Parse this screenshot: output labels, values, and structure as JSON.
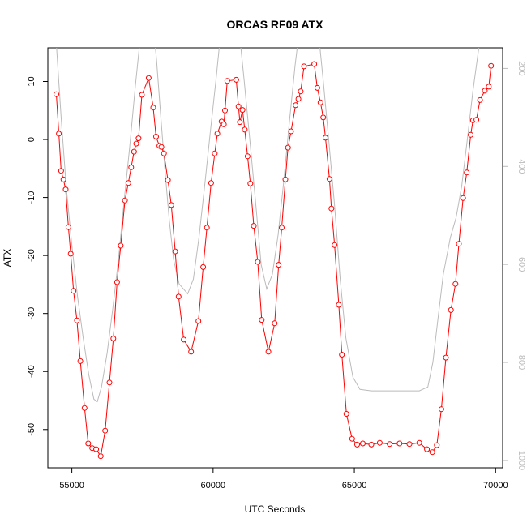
{
  "chart_data": {
    "type": "line",
    "title": "ORCAS RF09 ATX",
    "xlabel": "UTC Seconds",
    "ylabel": "ATX",
    "xlim": [
      54150,
      70250
    ],
    "ylim": [
      -56.6,
      15.8
    ],
    "xticks": [
      55000,
      60000,
      65000,
      70000
    ],
    "yticks": [
      10,
      0,
      -10,
      -20,
      -30,
      -40,
      -50
    ],
    "y2lim": [
      1015,
      158
    ],
    "y2ticks": [
      200,
      400,
      600,
      800,
      1000
    ],
    "grid": false,
    "series": [
      {
        "role": "primary",
        "color": "#ff0000",
        "marker": "circle",
        "points": [
          [
            54450,
            7.8
          ],
          [
            54540,
            1.0
          ],
          [
            54620,
            -5.4
          ],
          [
            54700,
            -6.9
          ],
          [
            54780,
            -8.6
          ],
          [
            54880,
            -15.1
          ],
          [
            54960,
            -19.7
          ],
          [
            55060,
            -26.1
          ],
          [
            55180,
            -31.2
          ],
          [
            55300,
            -38.2
          ],
          [
            55450,
            -46.3
          ],
          [
            55580,
            -52.4
          ],
          [
            55720,
            -53.2
          ],
          [
            55860,
            -53.4
          ],
          [
            56020,
            -54.6
          ],
          [
            56180,
            -50.2
          ],
          [
            56330,
            -41.9
          ],
          [
            56470,
            -34.3
          ],
          [
            56600,
            -24.6
          ],
          [
            56730,
            -18.3
          ],
          [
            56880,
            -10.5
          ],
          [
            57000,
            -7.5
          ],
          [
            57100,
            -4.8
          ],
          [
            57200,
            -2.1
          ],
          [
            57280,
            -0.7
          ],
          [
            57360,
            0.2
          ],
          [
            57480,
            7.7
          ],
          [
            57720,
            10.6
          ],
          [
            57880,
            5.5
          ],
          [
            57980,
            0.5
          ],
          [
            58100,
            -1.1
          ],
          [
            58170,
            -1.3
          ],
          [
            58260,
            -2.4
          ],
          [
            58400,
            -7.0
          ],
          [
            58520,
            -11.3
          ],
          [
            58660,
            -19.3
          ],
          [
            58780,
            -27.1
          ],
          [
            58960,
            -34.5
          ],
          [
            59220,
            -36.6
          ],
          [
            59480,
            -31.3
          ],
          [
            59650,
            -22.0
          ],
          [
            59780,
            -15.2
          ],
          [
            59930,
            -7.5
          ],
          [
            60060,
            -2.4
          ],
          [
            60150,
            1.0
          ],
          [
            60300,
            3.1
          ],
          [
            60380,
            2.6
          ],
          [
            60420,
            5.0
          ],
          [
            60500,
            10.1
          ],
          [
            60820,
            10.3
          ],
          [
            60900,
            5.7
          ],
          [
            60950,
            3.0
          ],
          [
            61040,
            5.1
          ],
          [
            61120,
            1.7
          ],
          [
            61220,
            -2.9
          ],
          [
            61320,
            -7.6
          ],
          [
            61440,
            -14.9
          ],
          [
            61580,
            -21.1
          ],
          [
            61720,
            -31.1
          ],
          [
            61960,
            -36.6
          ],
          [
            62180,
            -31.7
          ],
          [
            62320,
            -21.6
          ],
          [
            62430,
            -15.2
          ],
          [
            62560,
            -6.9
          ],
          [
            62650,
            -1.4
          ],
          [
            62760,
            1.4
          ],
          [
            62920,
            5.9
          ],
          [
            63020,
            7.0
          ],
          [
            63100,
            8.3
          ],
          [
            63220,
            12.6
          ],
          [
            63580,
            13.0
          ],
          [
            63690,
            8.9
          ],
          [
            63800,
            6.4
          ],
          [
            63900,
            3.8
          ],
          [
            63980,
            0.3
          ],
          [
            64120,
            -6.8
          ],
          [
            64190,
            -11.9
          ],
          [
            64300,
            -18.2
          ],
          [
            64450,
            -28.5
          ],
          [
            64560,
            -37.1
          ],
          [
            64720,
            -47.3
          ],
          [
            64920,
            -51.6
          ],
          [
            65100,
            -52.6
          ],
          [
            65300,
            -52.4
          ],
          [
            65600,
            -52.6
          ],
          [
            65900,
            -52.3
          ],
          [
            66250,
            -52.5
          ],
          [
            66600,
            -52.4
          ],
          [
            66950,
            -52.5
          ],
          [
            67300,
            -52.3
          ],
          [
            67570,
            -53.4
          ],
          [
            67760,
            -53.9
          ],
          [
            67920,
            -52.7
          ],
          [
            68080,
            -46.5
          ],
          [
            68240,
            -37.6
          ],
          [
            68420,
            -29.4
          ],
          [
            68580,
            -24.9
          ],
          [
            68700,
            -18.0
          ],
          [
            68850,
            -10.1
          ],
          [
            68980,
            -5.7
          ],
          [
            69120,
            0.8
          ],
          [
            69200,
            3.3
          ],
          [
            69320,
            3.4
          ],
          [
            69450,
            6.8
          ],
          [
            69620,
            8.4
          ],
          [
            69760,
            9.1
          ],
          [
            69840,
            12.7
          ]
        ]
      },
      {
        "role": "secondary-right-axis",
        "color": "#bbbbbb",
        "marker": "none",
        "points": [
          [
            54300,
            115
          ],
          [
            54450,
            150
          ],
          [
            54620,
            300
          ],
          [
            54800,
            440
          ],
          [
            55000,
            560
          ],
          [
            55200,
            665
          ],
          [
            55400,
            750
          ],
          [
            55600,
            825
          ],
          [
            55780,
            875
          ],
          [
            55900,
            880
          ],
          [
            56050,
            850
          ],
          [
            56250,
            780
          ],
          [
            56450,
            690
          ],
          [
            56650,
            590
          ],
          [
            56850,
            470
          ],
          [
            57050,
            360
          ],
          [
            57250,
            235
          ],
          [
            57420,
            140
          ],
          [
            57650,
            60
          ],
          [
            57850,
            90
          ],
          [
            58000,
            185
          ],
          [
            58150,
            300
          ],
          [
            58300,
            410
          ],
          [
            58450,
            510
          ],
          [
            58600,
            590
          ],
          [
            58800,
            640
          ],
          [
            59100,
            660
          ],
          [
            59300,
            630
          ],
          [
            59500,
            545
          ],
          [
            59700,
            440
          ],
          [
            59900,
            330
          ],
          [
            60100,
            225
          ],
          [
            60300,
            110
          ],
          [
            60600,
            55
          ],
          [
            60900,
            110
          ],
          [
            61100,
            225
          ],
          [
            61300,
            345
          ],
          [
            61500,
            470
          ],
          [
            61700,
            600
          ],
          [
            61900,
            650
          ],
          [
            62100,
            620
          ],
          [
            62300,
            540
          ],
          [
            62500,
            430
          ],
          [
            62700,
            310
          ],
          [
            62900,
            195
          ],
          [
            63100,
            100
          ],
          [
            63400,
            45
          ],
          [
            63700,
            110
          ],
          [
            63900,
            225
          ],
          [
            64100,
            350
          ],
          [
            64300,
            480
          ],
          [
            64500,
            630
          ],
          [
            64700,
            750
          ],
          [
            64950,
            830
          ],
          [
            65200,
            855
          ],
          [
            65600,
            858
          ],
          [
            66200,
            858
          ],
          [
            66800,
            858
          ],
          [
            67300,
            858
          ],
          [
            67600,
            850
          ],
          [
            67780,
            800
          ],
          [
            67950,
            715
          ],
          [
            68150,
            620
          ],
          [
            68400,
            545
          ],
          [
            68600,
            505
          ],
          [
            68800,
            440
          ],
          [
            69000,
            345
          ],
          [
            69200,
            245
          ],
          [
            69450,
            140
          ],
          [
            69750,
            75
          ],
          [
            70000,
            40
          ]
        ]
      }
    ]
  }
}
